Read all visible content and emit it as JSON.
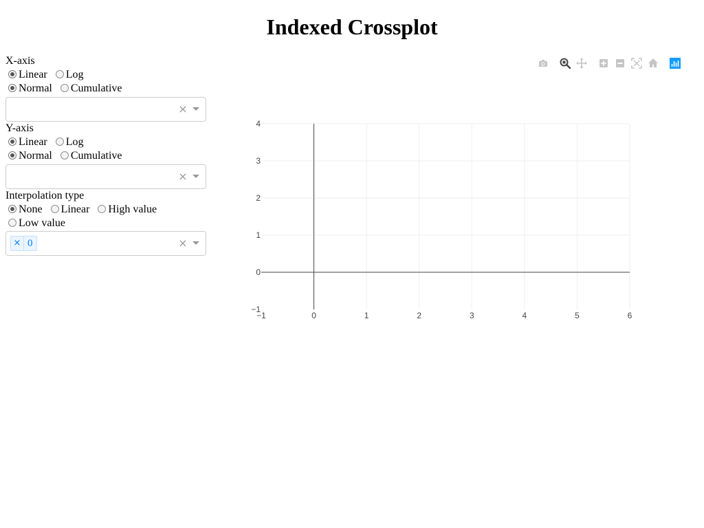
{
  "page": {
    "title": "Indexed Crossplot"
  },
  "controls": {
    "x_axis": {
      "label": "X-axis",
      "scale_options": [
        "Linear",
        "Log"
      ],
      "scale_selected": "Linear",
      "mode_options": [
        "Normal",
        "Cumulative"
      ],
      "mode_selected": "Normal",
      "dropdown_value": ""
    },
    "y_axis": {
      "label": "Y-axis",
      "scale_options": [
        "Linear",
        "Log"
      ],
      "scale_selected": "Linear",
      "mode_options": [
        "Normal",
        "Cumulative"
      ],
      "mode_selected": "Normal",
      "dropdown_value": ""
    },
    "interpolation": {
      "label": "Interpolation type",
      "options": [
        "None",
        "Linear",
        "High value",
        "Low value"
      ],
      "selected": "None",
      "selected_tags": [
        "0"
      ],
      "tag_remove_glyph": "×"
    },
    "clear_glyph": "×"
  },
  "modebar": {
    "buttons": [
      {
        "icon": "camera-icon",
        "title": "Download plot as a png"
      },
      {
        "icon": "zoom-icon",
        "title": "Zoom",
        "active": true
      },
      {
        "icon": "pan-icon",
        "title": "Pan"
      },
      {
        "icon": "zoom-in-icon",
        "title": "Zoom in"
      },
      {
        "icon": "zoom-out-icon",
        "title": "Zoom out"
      },
      {
        "icon": "autoscale-icon",
        "title": "Autoscale"
      },
      {
        "icon": "home-icon",
        "title": "Reset axes"
      },
      {
        "icon": "plotly-logo-icon",
        "title": "Produced with Plotly"
      }
    ],
    "colors": {
      "inactive": "#c5c5c5",
      "active": "#444444",
      "logo": "#119dff"
    }
  },
  "chart_data": {
    "type": "scatter",
    "title": "",
    "xlabel": "",
    "ylabel": "",
    "series": [],
    "xlim": [
      -1,
      6
    ],
    "ylim": [
      -1,
      4
    ],
    "xticks": [
      "−1",
      "0",
      "1",
      "2",
      "3",
      "4",
      "5",
      "6"
    ],
    "yticks": [
      "−1",
      "0",
      "1",
      "2",
      "3",
      "4"
    ],
    "grid": true,
    "zeroline": true,
    "colors": {
      "grid": "#eeeeee",
      "zeroline": "#444444",
      "tick_text": "#444444"
    }
  }
}
